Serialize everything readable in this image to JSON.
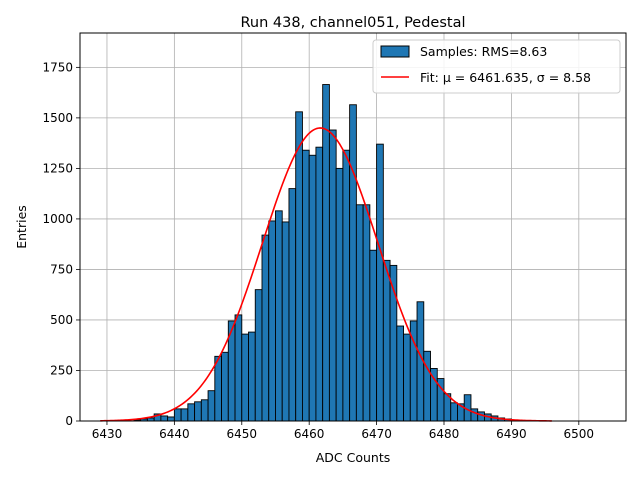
{
  "chart_data": {
    "type": "bar",
    "title": "Run 438, channel051, Pedestal",
    "xlabel": "ADC Counts",
    "ylabel": "Entries",
    "xlim": [
      6426,
      6507
    ],
    "ylim": [
      0,
      1920
    ],
    "xticks": [
      6430,
      6440,
      6450,
      6460,
      6470,
      6480,
      6490,
      6500
    ],
    "yticks": [
      0,
      250,
      500,
      750,
      1000,
      1250,
      1500,
      1750
    ],
    "grid": true,
    "legend_position": "top-right",
    "bin_width": 1,
    "series": [
      {
        "name": "Samples: RMS=8.63",
        "kind": "histogram",
        "color": "#1f77b4",
        "edgecolor": "#000000",
        "bins": [
          {
            "x": 6434,
            "y": 5
          },
          {
            "x": 6435,
            "y": 10
          },
          {
            "x": 6436,
            "y": 15
          },
          {
            "x": 6437,
            "y": 35
          },
          {
            "x": 6438,
            "y": 25
          },
          {
            "x": 6439,
            "y": 20
          },
          {
            "x": 6440,
            "y": 60
          },
          {
            "x": 6441,
            "y": 60
          },
          {
            "x": 6442,
            "y": 85
          },
          {
            "x": 6443,
            "y": 95
          },
          {
            "x": 6444,
            "y": 105
          },
          {
            "x": 6445,
            "y": 150
          },
          {
            "x": 6446,
            "y": 320
          },
          {
            "x": 6447,
            "y": 340
          },
          {
            "x": 6448,
            "y": 495
          },
          {
            "x": 6449,
            "y": 525
          },
          {
            "x": 6450,
            "y": 430
          },
          {
            "x": 6451,
            "y": 440
          },
          {
            "x": 6452,
            "y": 650
          },
          {
            "x": 6453,
            "y": 920
          },
          {
            "x": 6454,
            "y": 990
          },
          {
            "x": 6455,
            "y": 1040
          },
          {
            "x": 6456,
            "y": 985
          },
          {
            "x": 6457,
            "y": 1150
          },
          {
            "x": 6458,
            "y": 1530
          },
          {
            "x": 6459,
            "y": 1340
          },
          {
            "x": 6460,
            "y": 1315
          },
          {
            "x": 6461,
            "y": 1355
          },
          {
            "x": 6462,
            "y": 1665
          },
          {
            "x": 6463,
            "y": 1440
          },
          {
            "x": 6464,
            "y": 1250
          },
          {
            "x": 6465,
            "y": 1340
          },
          {
            "x": 6466,
            "y": 1565
          },
          {
            "x": 6467,
            "y": 1070
          },
          {
            "x": 6468,
            "y": 1070
          },
          {
            "x": 6469,
            "y": 845
          },
          {
            "x": 6470,
            "y": 1370
          },
          {
            "x": 6471,
            "y": 795
          },
          {
            "x": 6472,
            "y": 770
          },
          {
            "x": 6473,
            "y": 470
          },
          {
            "x": 6474,
            "y": 430
          },
          {
            "x": 6475,
            "y": 495
          },
          {
            "x": 6476,
            "y": 590
          },
          {
            "x": 6477,
            "y": 345
          },
          {
            "x": 6478,
            "y": 260
          },
          {
            "x": 6479,
            "y": 210
          },
          {
            "x": 6480,
            "y": 135
          },
          {
            "x": 6481,
            "y": 90
          },
          {
            "x": 6482,
            "y": 85
          },
          {
            "x": 6483,
            "y": 130
          },
          {
            "x": 6484,
            "y": 60
          },
          {
            "x": 6485,
            "y": 45
          },
          {
            "x": 6486,
            "y": 35
          },
          {
            "x": 6487,
            "y": 25
          },
          {
            "x": 6488,
            "y": 15
          },
          {
            "x": 6489,
            "y": 10
          },
          {
            "x": 6490,
            "y": 5
          }
        ]
      },
      {
        "name": "Fit: μ = 6461.635, σ = 8.58",
        "kind": "gaussian-fit",
        "color": "#ff0000",
        "mu": 6461.635,
        "sigma": 8.58,
        "amplitude": 1450,
        "x_range": [
          6429,
          6496
        ]
      }
    ]
  }
}
